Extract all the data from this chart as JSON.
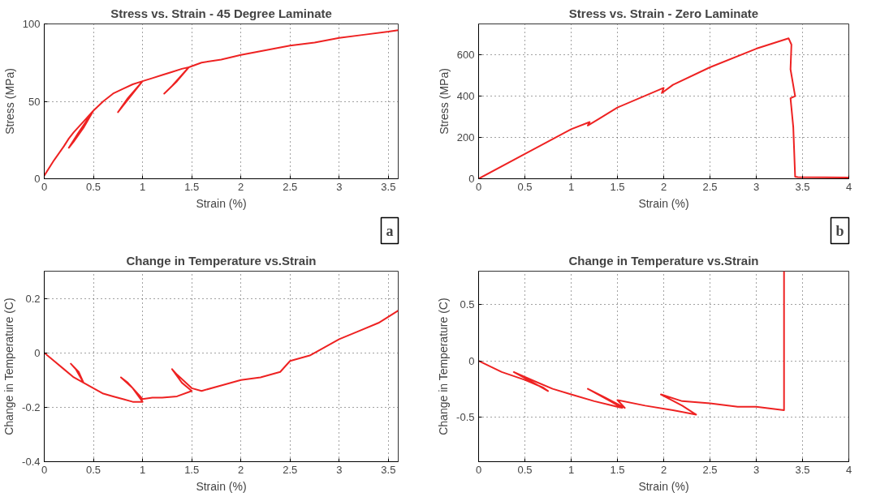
{
  "chart_data": [
    {
      "type": "line",
      "title": "Stress vs. Strain - 45 Degree Laminate",
      "xlabel": "Strain (%)",
      "ylabel": "Stress (MPa)",
      "xlim": [
        0,
        3.6
      ],
      "ylim": [
        0,
        100
      ],
      "xticks": [
        0,
        0.5,
        1,
        1.5,
        2,
        2.5,
        3,
        3.5
      ],
      "yticks": [
        0,
        50,
        100
      ],
      "grid": true,
      "line_style": "solid",
      "annotations": [
        "a"
      ],
      "series": [
        {
          "color": "#ee2222",
          "x": [
            0,
            0.1,
            0.2,
            0.25,
            0.3,
            0.4,
            0.5,
            0.35,
            0.25,
            0.3,
            0.4,
            0.5,
            0.6,
            0.7,
            0.8,
            0.9,
            1.0,
            0.85,
            0.75,
            0.8,
            0.9,
            1.0,
            1.1,
            1.2,
            1.3,
            1.4,
            1.47,
            1.35,
            1.22,
            1.3,
            1.47,
            1.6,
            1.8,
            2.0,
            2.25,
            2.5,
            2.75,
            3.0,
            3.25,
            3.5,
            3.6
          ],
          "values": [
            2,
            12,
            21,
            26,
            30,
            37,
            44,
            30,
            20,
            24,
            33,
            44,
            50,
            55,
            58,
            61,
            63,
            52,
            43,
            47,
            55,
            63,
            65,
            67,
            69,
            71,
            72,
            63,
            55,
            60,
            72,
            75,
            77,
            80,
            83,
            86,
            88,
            91,
            93,
            95,
            96
          ]
        }
      ]
    },
    {
      "type": "line",
      "title": "Stress vs. Strain - Zero Laminate",
      "xlabel": "Strain (%)",
      "ylabel": "Stress (MPa)",
      "xlim": [
        0,
        4
      ],
      "ylim": [
        0,
        750
      ],
      "xticks": [
        0,
        0.5,
        1,
        1.5,
        2,
        2.5,
        3,
        3.5,
        4
      ],
      "yticks": [
        0,
        200,
        400,
        600
      ],
      "grid": true,
      "line_style": "solid",
      "annotations": [
        "b"
      ],
      "series": [
        {
          "color": "#ee2222",
          "x": [
            0,
            0.5,
            1,
            1.2,
            1.18,
            1.3,
            1.5,
            2,
            1.98,
            2.1,
            2.5,
            3,
            3.35,
            3.38,
            3.37,
            3.42,
            3.37,
            3.4,
            3.42,
            3.45,
            4
          ],
          "values": [
            0,
            120,
            240,
            275,
            258,
            290,
            345,
            440,
            415,
            455,
            540,
            630,
            680,
            650,
            530,
            400,
            390,
            250,
            10,
            8,
            6
          ]
        }
      ]
    },
    {
      "type": "line",
      "title": "Change in Temperature vs.Strain",
      "xlabel": "Strain (%)",
      "ylabel": "Change in Temperature (C)",
      "xlim": [
        0,
        3.6
      ],
      "ylim": [
        -0.4,
        0.3
      ],
      "xticks": [
        0,
        0.5,
        1,
        1.5,
        2,
        2.5,
        3,
        3.5
      ],
      "yticks": [
        -0.4,
        -0.2,
        0,
        0.2
      ],
      "grid": true,
      "line_style": "solid",
      "series": [
        {
          "color": "#ee2222",
          "x": [
            0,
            0.1,
            0.2,
            0.3,
            0.4,
            0.35,
            0.27,
            0.32,
            0.4,
            0.5,
            0.6,
            0.7,
            0.8,
            0.9,
            1.0,
            0.9,
            0.78,
            0.85,
            1.0,
            1.1,
            1.2,
            1.35,
            1.5,
            1.4,
            1.3,
            1.35,
            1.5,
            1.6,
            1.8,
            2.0,
            2.2,
            2.4,
            2.5,
            2.7,
            2.9,
            3.0,
            3.2,
            3.4,
            3.6
          ],
          "values": [
            0,
            -0.03,
            -0.06,
            -0.09,
            -0.11,
            -0.07,
            -0.04,
            -0.06,
            -0.11,
            -0.13,
            -0.15,
            -0.16,
            -0.17,
            -0.18,
            -0.18,
            -0.13,
            -0.09,
            -0.11,
            -0.17,
            -0.165,
            -0.165,
            -0.16,
            -0.14,
            -0.11,
            -0.06,
            -0.08,
            -0.13,
            -0.14,
            -0.12,
            -0.1,
            -0.09,
            -0.07,
            -0.03,
            -0.01,
            0.03,
            0.05,
            0.08,
            0.11,
            0.155
          ]
        }
      ]
    },
    {
      "type": "line",
      "title": "Change in Temperature vs.Strain",
      "xlabel": "Strain (%)",
      "ylabel": "Change in Temperature (C)",
      "xlim": [
        0,
        4
      ],
      "ylim": [
        -0.9,
        0.8
      ],
      "xticks": [
        0,
        0.5,
        1,
        1.5,
        2,
        2.5,
        3,
        3.5,
        4
      ],
      "yticks": [
        -0.5,
        0,
        0.5
      ],
      "grid": true,
      "line_style": "solid",
      "series": [
        {
          "color": "#ee2222",
          "x": [
            0,
            0.25,
            0.5,
            0.7,
            0.75,
            0.6,
            0.38,
            0.6,
            0.8,
            1.0,
            1.25,
            1.55,
            1.4,
            1.18,
            1.35,
            1.58,
            1.5,
            1.8,
            2.1,
            2.35,
            2.2,
            1.97,
            2.2,
            2.5,
            2.8,
            3.0,
            3.3,
            3.3
          ],
          "values": [
            0,
            -0.1,
            -0.17,
            -0.24,
            -0.27,
            -0.2,
            -0.1,
            -0.18,
            -0.25,
            -0.3,
            -0.36,
            -0.42,
            -0.35,
            -0.25,
            -0.32,
            -0.42,
            -0.35,
            -0.4,
            -0.44,
            -0.48,
            -0.4,
            -0.3,
            -0.36,
            -0.38,
            -0.41,
            -0.41,
            -0.44,
            0.8
          ]
        }
      ]
    }
  ]
}
